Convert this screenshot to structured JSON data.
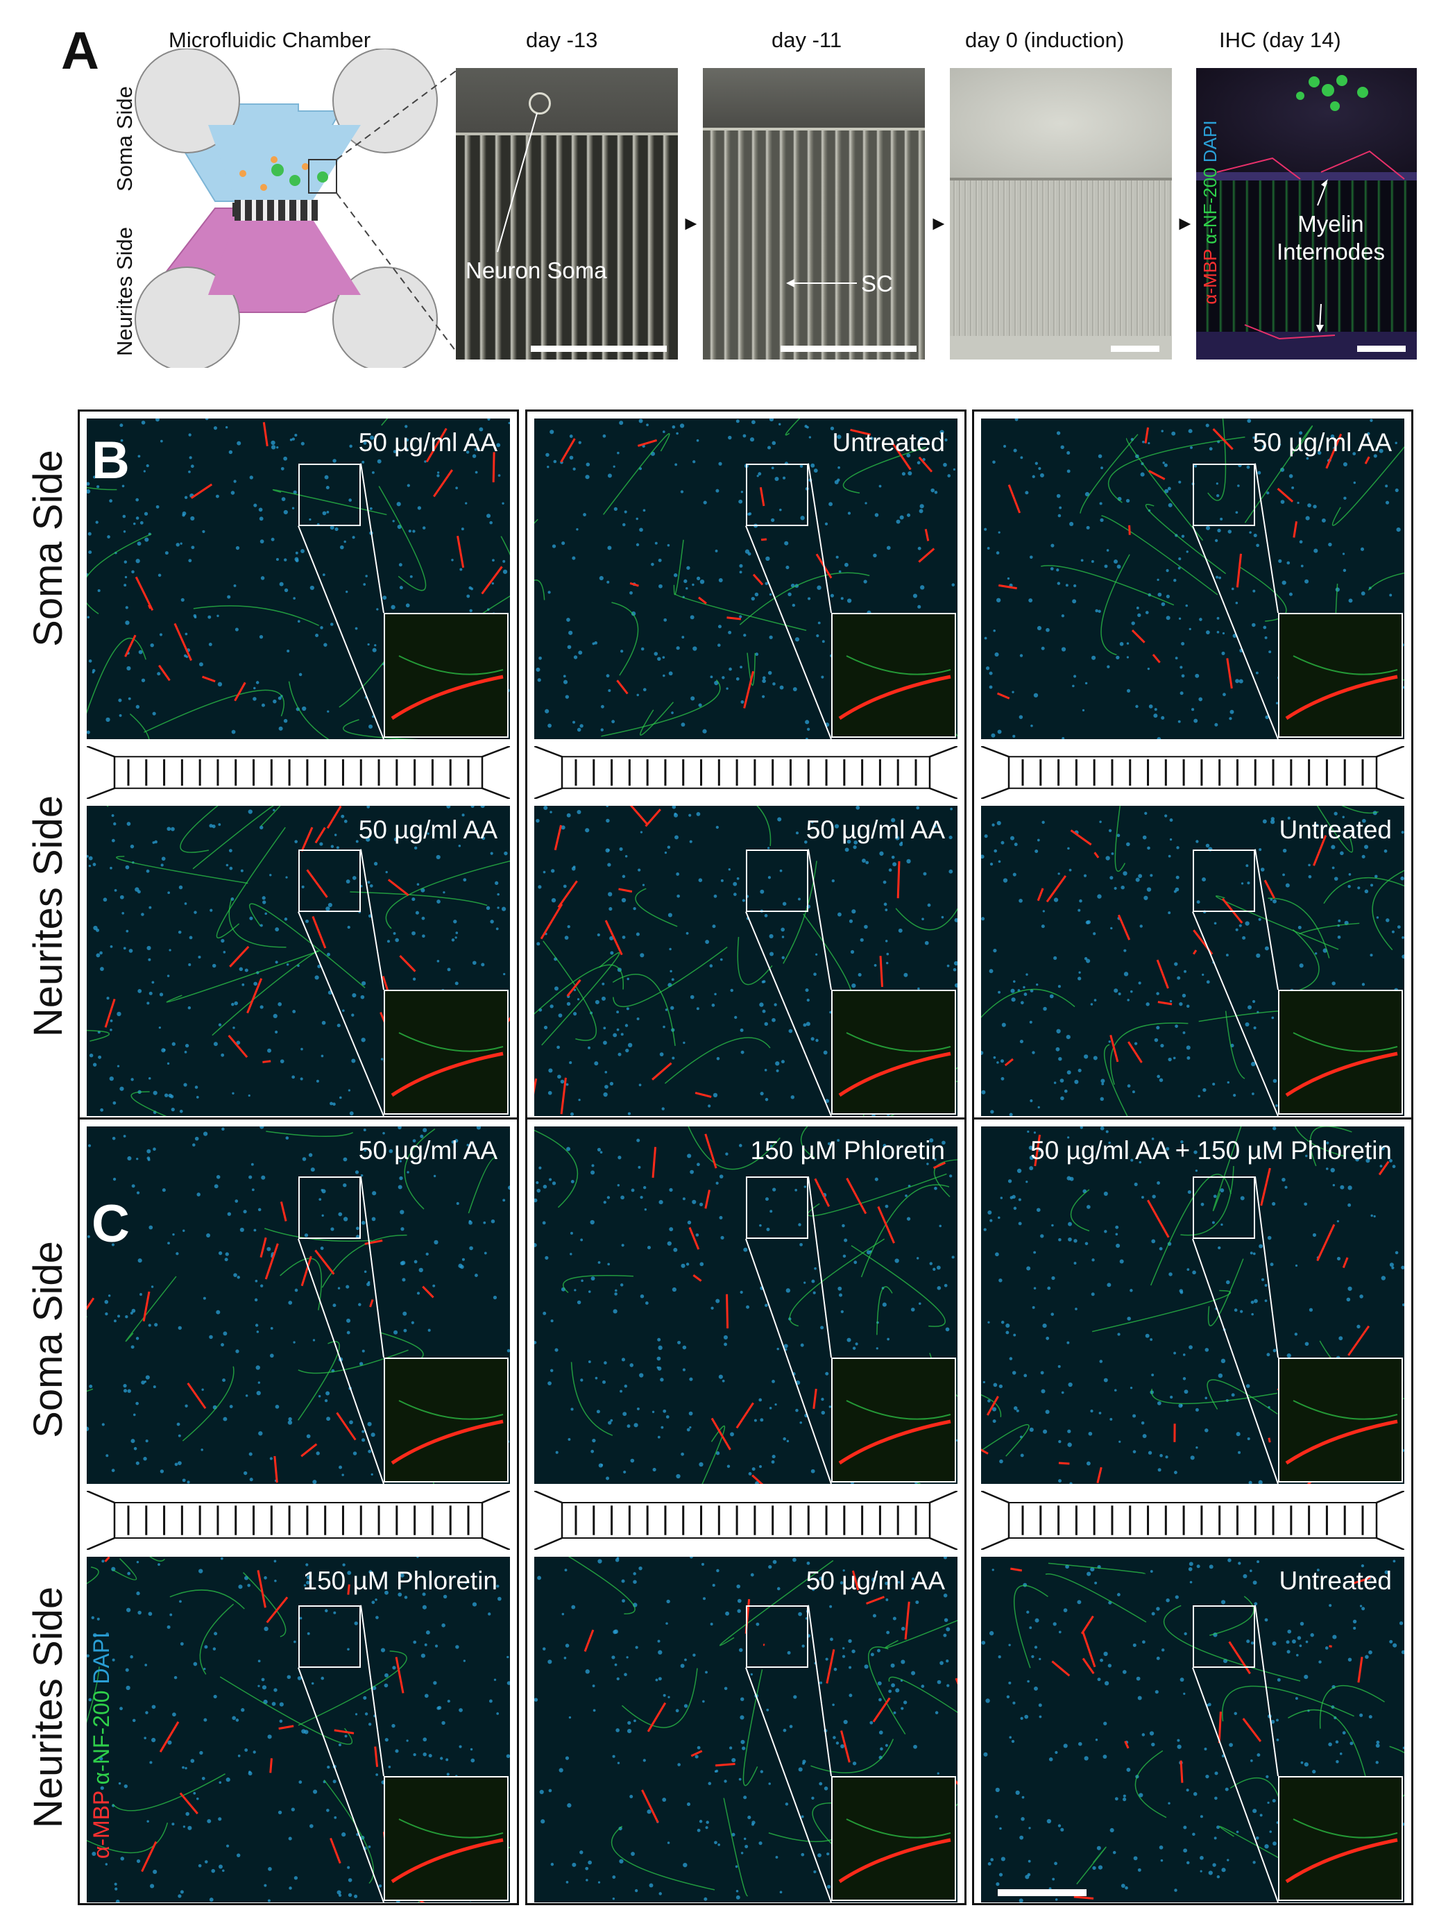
{
  "panel_labels": {
    "a": "A",
    "b": "B",
    "c": "C"
  },
  "panel_a": {
    "chamber_title": "Microfluidic Chamber",
    "soma_side": "Soma Side",
    "neurites_side": "Neurites Side",
    "timepoints": [
      {
        "title": "day -13",
        "annotation": "Neuron Soma"
      },
      {
        "title": "day -11",
        "annotation": "SC"
      },
      {
        "title": "day 0 (induction)",
        "annotation": ""
      },
      {
        "title": "IHC (day 14)",
        "annotation": "Myelin\nInternodes"
      }
    ],
    "stain_legend": {
      "mbp": "α-MBP",
      "nf": "α-NF-200",
      "dapi": "DAPI"
    }
  },
  "row_labels": {
    "soma": "Soma Side",
    "neurites": "Neurites Side"
  },
  "panel_b": {
    "columns": [
      {
        "soma": "50 µg/ml AA",
        "neurites": "50 µg/ml AA"
      },
      {
        "soma": "Untreated",
        "neurites": "50 µg/ml AA"
      },
      {
        "soma": "50 µg/ml AA",
        "neurites": "Untreated"
      }
    ]
  },
  "panel_c": {
    "columns": [
      {
        "soma": "50 µg/ml AA",
        "neurites": "150 µM Phloretin"
      },
      {
        "soma": "150 µM Phloretin",
        "neurites": "50 µg/ml AA"
      },
      {
        "soma": "50 µg/ml AA + 150 µM Phloretin",
        "neurites": "Untreated"
      }
    ],
    "stain_legend": {
      "mbp": "α-MBP",
      "nf": "α-NF-200",
      "dapi": "DAPI"
    }
  },
  "colors": {
    "soma_chamber": "#a9d3ec",
    "neurite_chamber": "#cf7fc0",
    "mbp": "#ff2a1a",
    "nf200": "#2fd04a",
    "dapi": "#2a9fd6"
  }
}
